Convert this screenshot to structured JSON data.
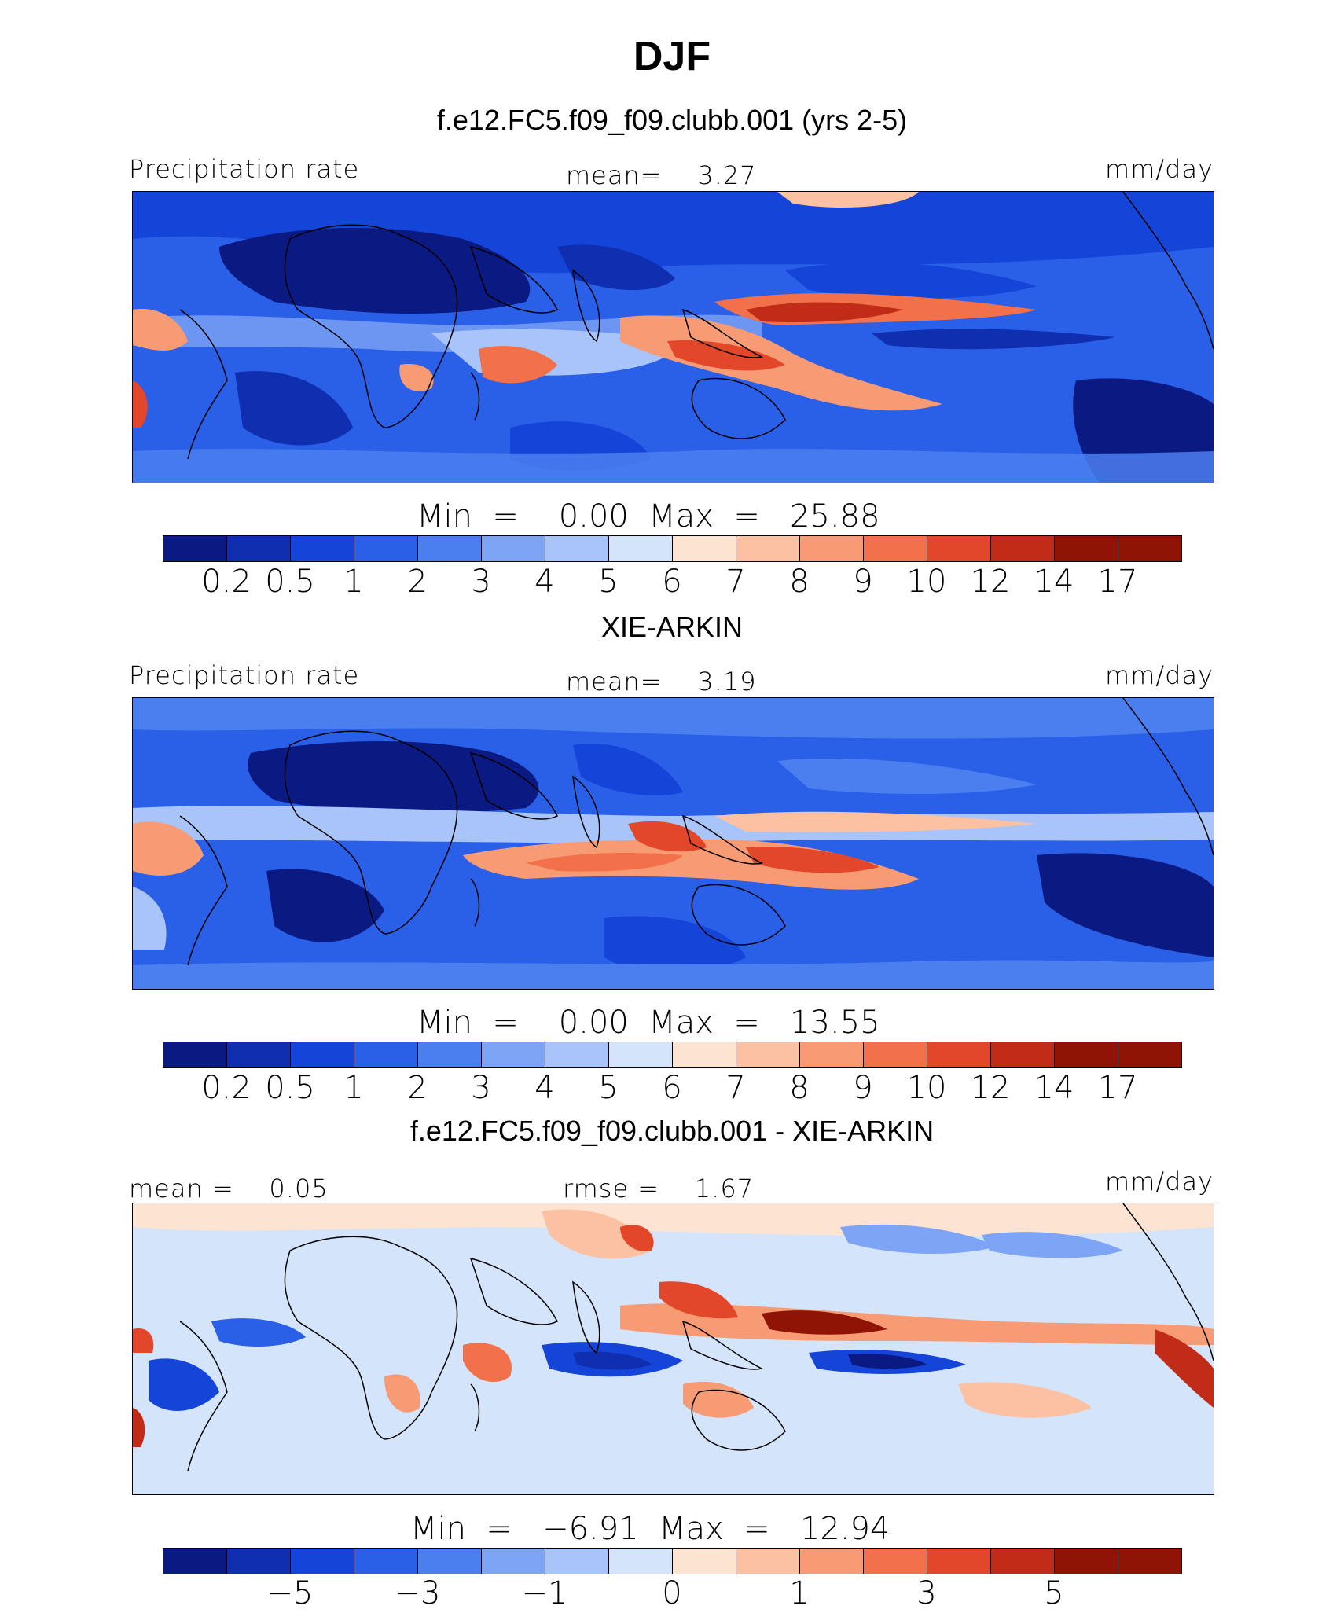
{
  "season": "DJF",
  "panels": [
    {
      "title": "f.e12.FC5.f09_f09.clubb.001 (yrs 2-5)",
      "left_label": "Precipitation rate",
      "center_label": "mean=    3.27",
      "units": "mm/day",
      "minmax": "Min  =    0.00  Max  =   25.88",
      "colorbar_ticks": [
        "0.2",
        "0.5",
        "1",
        "2",
        "3",
        "4",
        "5",
        "6",
        "7",
        "8",
        "9",
        "10",
        "12",
        "14",
        "17"
      ],
      "colorbar_colors": [
        "#0b1a82",
        "#0f2eb0",
        "#1444d8",
        "#2a5fe8",
        "#4b7ff0",
        "#7ea4f5",
        "#a9c4f8",
        "#d4e4fa",
        "#fde3d1",
        "#fbc1a2",
        "#f79b74",
        "#f2714a",
        "#e2472a",
        "#c02c17",
        "#8f1405"
      ]
    },
    {
      "title": "XIE-ARKIN",
      "left_label": "Precipitation rate",
      "center_label": "mean=    3.19",
      "units": "mm/day",
      "minmax": "Min  =    0.00  Max  =   13.55",
      "colorbar_ticks": [
        "0.2",
        "0.5",
        "1",
        "2",
        "3",
        "4",
        "5",
        "6",
        "7",
        "8",
        "9",
        "10",
        "12",
        "14",
        "17"
      ],
      "colorbar_colors": [
        "#0b1a82",
        "#0f2eb0",
        "#1444d8",
        "#2a5fe8",
        "#4b7ff0",
        "#7ea4f5",
        "#a9c4f8",
        "#d4e4fa",
        "#fde3d1",
        "#fbc1a2",
        "#f79b74",
        "#f2714a",
        "#e2472a",
        "#c02c17",
        "#8f1405"
      ]
    },
    {
      "title": "f.e12.FC5.f09_f09.clubb.001 - XIE-ARKIN",
      "left_label": "mean =    0.05",
      "center_label": "rmse =    1.67",
      "units": "mm/day",
      "minmax": "Min  =   −6.91  Max  =   12.94",
      "colorbar_ticks": [
        "−5",
        "−3",
        "−1",
        "0",
        "1",
        "3",
        "5"
      ],
      "colorbar_colors": [
        "#0b1a82",
        "#0f2eb0",
        "#1444d8",
        "#2a5fe8",
        "#4b7ff0",
        "#7ea4f5",
        "#a9c4f8",
        "#d4e4fa",
        "#fde3d1",
        "#fbc1a2",
        "#f79b74",
        "#f2714a",
        "#e2472a",
        "#c02c17",
        "#8f1405",
        "#8f1405"
      ]
    }
  ]
}
